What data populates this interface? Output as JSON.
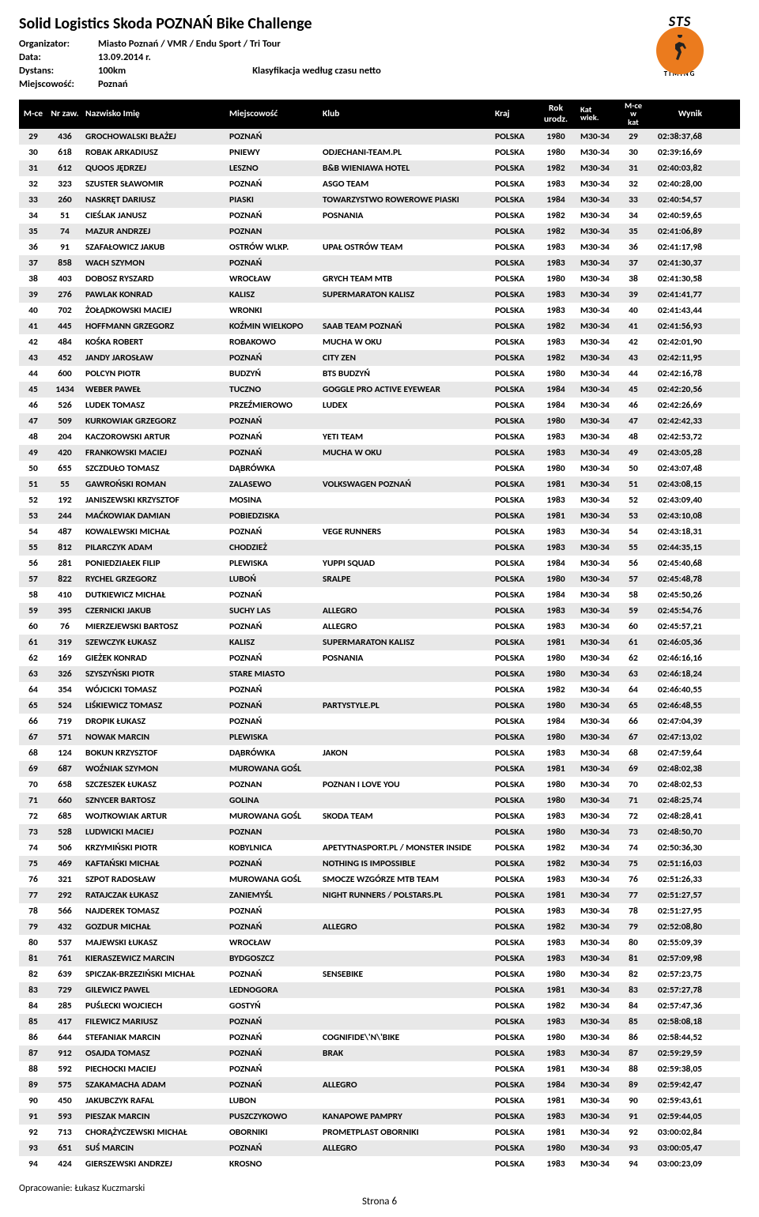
{
  "title": "Solid Logistics Skoda POZNAŃ Bike Challenge",
  "meta": {
    "organizator_label": "Organizator:",
    "organizator": "Miasto Poznań / VMR / Endu Sport / Tri Tour",
    "data_label": "Data:",
    "data": "13.09.2014 r.",
    "dystans_label": "Dystans:",
    "dystans": "100km",
    "miejscowosc_label": "Miejscowość:",
    "miejscowosc": "Poznań",
    "klasyfikacja": "Klasyfikacja według czasu netto"
  },
  "logo_text": "STS",
  "headers": {
    "mce": "M-ce",
    "nr": "Nr zaw.",
    "name": "Nazwisko Imię",
    "city": "Miejscowość",
    "club": "Klub",
    "kraj": "Kraj",
    "rok": "Rok urodz.",
    "kat1": "Kat",
    "kat2": "wiek.",
    "mcek1": "M-ce w",
    "mcek2": "kat",
    "wynik": "Wynik"
  },
  "rows": [
    {
      "mce": "29",
      "nr": "436",
      "name": "GROCHOWALSKI BŁAŻEJ",
      "city": "POZNAŃ",
      "club": "",
      "kraj": "POLSKA",
      "rok": "1980",
      "kat": "M30-34",
      "mcek": "29",
      "wynik": "02:38:37,68"
    },
    {
      "mce": "30",
      "nr": "618",
      "name": "ROBAK ARKADIUSZ",
      "city": "PNIEWY",
      "club": "ODJECHANI-TEAM.PL",
      "kraj": "POLSKA",
      "rok": "1980",
      "kat": "M30-34",
      "mcek": "30",
      "wynik": "02:39:16,69"
    },
    {
      "mce": "31",
      "nr": "612",
      "name": "QUOOS JĘDRZEJ",
      "city": "LESZNO",
      "club": "B&B WIENIAWA HOTEL",
      "kraj": "POLSKA",
      "rok": "1982",
      "kat": "M30-34",
      "mcek": "31",
      "wynik": "02:40:03,82"
    },
    {
      "mce": "32",
      "nr": "323",
      "name": "SZUSTER SŁAWOMIR",
      "city": "POZNAŃ",
      "club": "ASGO TEAM",
      "kraj": "POLSKA",
      "rok": "1983",
      "kat": "M30-34",
      "mcek": "32",
      "wynik": "02:40:28,00"
    },
    {
      "mce": "33",
      "nr": "260",
      "name": "NASKRĘT DARIUSZ",
      "city": "PIASKI",
      "club": "TOWARZYSTWO ROWEROWE PIASKI",
      "kraj": "POLSKA",
      "rok": "1984",
      "kat": "M30-34",
      "mcek": "33",
      "wynik": "02:40:54,57"
    },
    {
      "mce": "34",
      "nr": "51",
      "name": "CIEŚLAK JANUSZ",
      "city": "POZNAŃ",
      "club": "POSNANIA",
      "kraj": "POLSKA",
      "rok": "1982",
      "kat": "M30-34",
      "mcek": "34",
      "wynik": "02:40:59,65"
    },
    {
      "mce": "35",
      "nr": "74",
      "name": "MAZUR ANDRZEJ",
      "city": "POZNAN",
      "club": "",
      "kraj": "POLSKA",
      "rok": "1982",
      "kat": "M30-34",
      "mcek": "35",
      "wynik": "02:41:06,89"
    },
    {
      "mce": "36",
      "nr": "91",
      "name": "SZAFAŁOWICZ JAKUB",
      "city": "OSTRÓW WLKP.",
      "club": "UPAŁ OSTRÓW TEAM",
      "kraj": "POLSKA",
      "rok": "1983",
      "kat": "M30-34",
      "mcek": "36",
      "wynik": "02:41:17,98"
    },
    {
      "mce": "37",
      "nr": "858",
      "name": "WACH SZYMON",
      "city": "POZNAŃ",
      "club": "",
      "kraj": "POLSKA",
      "rok": "1983",
      "kat": "M30-34",
      "mcek": "37",
      "wynik": "02:41:30,37"
    },
    {
      "mce": "38",
      "nr": "403",
      "name": "DOBOSZ RYSZARD",
      "city": "WROCŁAW",
      "club": "GRYCH TEAM MTB",
      "kraj": "POLSKA",
      "rok": "1980",
      "kat": "M30-34",
      "mcek": "38",
      "wynik": "02:41:30,58"
    },
    {
      "mce": "39",
      "nr": "276",
      "name": "PAWLAK KONRAD",
      "city": "KALISZ",
      "club": "SUPERMARATON KALISZ",
      "kraj": "POLSKA",
      "rok": "1983",
      "kat": "M30-34",
      "mcek": "39",
      "wynik": "02:41:41,77"
    },
    {
      "mce": "40",
      "nr": "702",
      "name": "ŻOŁĄDKOWSKI MACIEJ",
      "city": "WRONKI",
      "club": "",
      "kraj": "POLSKA",
      "rok": "1983",
      "kat": "M30-34",
      "mcek": "40",
      "wynik": "02:41:43,44"
    },
    {
      "mce": "41",
      "nr": "445",
      "name": "HOFFMANN GRZEGORZ",
      "city": "KOŹMIN WIELKOPO",
      "club": "SAAB TEAM POZNAŃ",
      "kraj": "POLSKA",
      "rok": "1982",
      "kat": "M30-34",
      "mcek": "41",
      "wynik": "02:41:56,93"
    },
    {
      "mce": "42",
      "nr": "484",
      "name": "KOŚKA ROBERT",
      "city": "ROBAKOWO",
      "club": "MUCHA W OKU",
      "kraj": "POLSKA",
      "rok": "1983",
      "kat": "M30-34",
      "mcek": "42",
      "wynik": "02:42:01,90"
    },
    {
      "mce": "43",
      "nr": "452",
      "name": "JANDY JAROSŁAW",
      "city": "POZNAŃ",
      "club": "CITY ZEN",
      "kraj": "POLSKA",
      "rok": "1982",
      "kat": "M30-34",
      "mcek": "43",
      "wynik": "02:42:11,95"
    },
    {
      "mce": "44",
      "nr": "600",
      "name": "POLCYN PIOTR",
      "city": "BUDZYŃ",
      "club": "BTS BUDZYŃ",
      "kraj": "POLSKA",
      "rok": "1980",
      "kat": "M30-34",
      "mcek": "44",
      "wynik": "02:42:16,78"
    },
    {
      "mce": "45",
      "nr": "1434",
      "name": "WEBER PAWEŁ",
      "city": "TUCZNO",
      "club": "GOGGLE PRO ACTIVE EYEWEAR",
      "kraj": "POLSKA",
      "rok": "1984",
      "kat": "M30-34",
      "mcek": "45",
      "wynik": "02:42:20,56"
    },
    {
      "mce": "46",
      "nr": "526",
      "name": "LUDEK TOMASZ",
      "city": "PRZEŹMIEROWO",
      "club": "LUDEX",
      "kraj": "POLSKA",
      "rok": "1984",
      "kat": "M30-34",
      "mcek": "46",
      "wynik": "02:42:26,69"
    },
    {
      "mce": "47",
      "nr": "509",
      "name": "KURKOWIAK GRZEGORZ",
      "city": "POZNAŃ",
      "club": "",
      "kraj": "POLSKA",
      "rok": "1980",
      "kat": "M30-34",
      "mcek": "47",
      "wynik": "02:42:42,33"
    },
    {
      "mce": "48",
      "nr": "204",
      "name": "KACZOROWSKI ARTUR",
      "city": "POZNAŃ",
      "club": "YETI TEAM",
      "kraj": "POLSKA",
      "rok": "1983",
      "kat": "M30-34",
      "mcek": "48",
      "wynik": "02:42:53,72"
    },
    {
      "mce": "49",
      "nr": "420",
      "name": "FRANKOWSKI MACIEJ",
      "city": "POZNAŃ",
      "club": "MUCHA W OKU",
      "kraj": "POLSKA",
      "rok": "1983",
      "kat": "M30-34",
      "mcek": "49",
      "wynik": "02:43:05,28"
    },
    {
      "mce": "50",
      "nr": "655",
      "name": "SZCZDUŁO TOMASZ",
      "city": "DĄBRÓWKA",
      "club": "",
      "kraj": "POLSKA",
      "rok": "1980",
      "kat": "M30-34",
      "mcek": "50",
      "wynik": "02:43:07,48"
    },
    {
      "mce": "51",
      "nr": "55",
      "name": "GAWROŃSKI ROMAN",
      "city": "ZALASEWO",
      "club": "VOLKSWAGEN POZNAŃ",
      "kraj": "POLSKA",
      "rok": "1981",
      "kat": "M30-34",
      "mcek": "51",
      "wynik": "02:43:08,15"
    },
    {
      "mce": "52",
      "nr": "192",
      "name": "JANISZEWSKI KRZYSZTOF",
      "city": "MOSINA",
      "club": "",
      "kraj": "POLSKA",
      "rok": "1983",
      "kat": "M30-34",
      "mcek": "52",
      "wynik": "02:43:09,40"
    },
    {
      "mce": "53",
      "nr": "244",
      "name": "MAĆKOWIAK DAMIAN",
      "city": "POBIEDZISKA",
      "club": "",
      "kraj": "POLSKA",
      "rok": "1981",
      "kat": "M30-34",
      "mcek": "53",
      "wynik": "02:43:10,08"
    },
    {
      "mce": "54",
      "nr": "487",
      "name": "KOWALEWSKI MICHAŁ",
      "city": "POZNAŃ",
      "club": "VEGE RUNNERS",
      "kraj": "POLSKA",
      "rok": "1983",
      "kat": "M30-34",
      "mcek": "54",
      "wynik": "02:43:18,31"
    },
    {
      "mce": "55",
      "nr": "812",
      "name": "PILARCZYK ADAM",
      "city": "CHODZIEŻ",
      "club": "",
      "kraj": "POLSKA",
      "rok": "1983",
      "kat": "M30-34",
      "mcek": "55",
      "wynik": "02:44:35,15"
    },
    {
      "mce": "56",
      "nr": "281",
      "name": "PONIEDZIAŁEK FILIP",
      "city": "PLEWISKA",
      "club": "YUPPI SQUAD",
      "kraj": "POLSKA",
      "rok": "1984",
      "kat": "M30-34",
      "mcek": "56",
      "wynik": "02:45:40,68"
    },
    {
      "mce": "57",
      "nr": "822",
      "name": "RYCHEL GRZEGORZ",
      "city": "LUBOŃ",
      "club": "SRALPE",
      "kraj": "POLSKA",
      "rok": "1980",
      "kat": "M30-34",
      "mcek": "57",
      "wynik": "02:45:48,78"
    },
    {
      "mce": "58",
      "nr": "410",
      "name": "DUTKIEWICZ MICHAŁ",
      "city": "POZNAŃ",
      "club": "",
      "kraj": "POLSKA",
      "rok": "1984",
      "kat": "M30-34",
      "mcek": "58",
      "wynik": "02:45:50,26"
    },
    {
      "mce": "59",
      "nr": "395",
      "name": "CZERNICKI JAKUB",
      "city": "SUCHY LAS",
      "club": "ALLEGRO",
      "kraj": "POLSKA",
      "rok": "1983",
      "kat": "M30-34",
      "mcek": "59",
      "wynik": "02:45:54,76"
    },
    {
      "mce": "60",
      "nr": "76",
      "name": "MIERZEJEWSKI BARTOSZ",
      "city": "POZNAŃ",
      "club": "ALLEGRO",
      "kraj": "POLSKA",
      "rok": "1983",
      "kat": "M30-34",
      "mcek": "60",
      "wynik": "02:45:57,21"
    },
    {
      "mce": "61",
      "nr": "319",
      "name": "SZEWCZYK ŁUKASZ",
      "city": "KALISZ",
      "club": "SUPERMARATON KALISZ",
      "kraj": "POLSKA",
      "rok": "1981",
      "kat": "M30-34",
      "mcek": "61",
      "wynik": "02:46:05,36"
    },
    {
      "mce": "62",
      "nr": "169",
      "name": "GIEŻEK KONRAD",
      "city": "POZNAŃ",
      "club": "POSNANIA",
      "kraj": "POLSKA",
      "rok": "1980",
      "kat": "M30-34",
      "mcek": "62",
      "wynik": "02:46:16,16"
    },
    {
      "mce": "63",
      "nr": "326",
      "name": "SZYSZYŃSKI PIOTR",
      "city": "STARE MIASTO",
      "club": "",
      "kraj": "POLSKA",
      "rok": "1980",
      "kat": "M30-34",
      "mcek": "63",
      "wynik": "02:46:18,24"
    },
    {
      "mce": "64",
      "nr": "354",
      "name": "WÓJCICKI TOMASZ",
      "city": "POZNAŃ",
      "club": "",
      "kraj": "POLSKA",
      "rok": "1982",
      "kat": "M30-34",
      "mcek": "64",
      "wynik": "02:46:40,55"
    },
    {
      "mce": "65",
      "nr": "524",
      "name": "LIŚKIEWICZ TOMASZ",
      "city": "POZNAŃ",
      "club": "PARTYSTYLE.PL",
      "kraj": "POLSKA",
      "rok": "1980",
      "kat": "M30-34",
      "mcek": "65",
      "wynik": "02:46:48,55"
    },
    {
      "mce": "66",
      "nr": "719",
      "name": "DROPIK ŁUKASZ",
      "city": "POZNAŃ",
      "club": "",
      "kraj": "POLSKA",
      "rok": "1984",
      "kat": "M30-34",
      "mcek": "66",
      "wynik": "02:47:04,39"
    },
    {
      "mce": "67",
      "nr": "571",
      "name": "NOWAK MARCIN",
      "city": "PLEWISKA",
      "club": "",
      "kraj": "POLSKA",
      "rok": "1980",
      "kat": "M30-34",
      "mcek": "67",
      "wynik": "02:47:13,02"
    },
    {
      "mce": "68",
      "nr": "124",
      "name": "BOKUN KRZYSZTOF",
      "city": "DĄBRÓWKA",
      "club": "JAKON",
      "kraj": "POLSKA",
      "rok": "1983",
      "kat": "M30-34",
      "mcek": "68",
      "wynik": "02:47:59,64"
    },
    {
      "mce": "69",
      "nr": "687",
      "name": "WOŹNIAK SZYMON",
      "city": "MUROWANA GOŚL",
      "club": "",
      "kraj": "POLSKA",
      "rok": "1981",
      "kat": "M30-34",
      "mcek": "69",
      "wynik": "02:48:02,38"
    },
    {
      "mce": "70",
      "nr": "658",
      "name": "SZCZESZEK ŁUKASZ",
      "city": "POZNAN",
      "club": "POZNAN I LOVE YOU",
      "kraj": "POLSKA",
      "rok": "1980",
      "kat": "M30-34",
      "mcek": "70",
      "wynik": "02:48:02,53"
    },
    {
      "mce": "71",
      "nr": "660",
      "name": "SZNYCER BARTOSZ",
      "city": "GOLINA",
      "club": "",
      "kraj": "POLSKA",
      "rok": "1980",
      "kat": "M30-34",
      "mcek": "71",
      "wynik": "02:48:25,74"
    },
    {
      "mce": "72",
      "nr": "685",
      "name": "WOJTKOWIAK ARTUR",
      "city": "MUROWANA GOŚL",
      "club": "SKODA TEAM",
      "kraj": "POLSKA",
      "rok": "1983",
      "kat": "M30-34",
      "mcek": "72",
      "wynik": "02:48:28,41"
    },
    {
      "mce": "73",
      "nr": "528",
      "name": "LUDWICKI MACIEJ",
      "city": "POZNAN",
      "club": "",
      "kraj": "POLSKA",
      "rok": "1980",
      "kat": "M30-34",
      "mcek": "73",
      "wynik": "02:48:50,70"
    },
    {
      "mce": "74",
      "nr": "506",
      "name": "KRZYMIŃSKI PIOTR",
      "city": "KOBYLNICA",
      "club": "APETYTNASPORT.PL / MONSTER INSIDE",
      "kraj": "POLSKA",
      "rok": "1982",
      "kat": "M30-34",
      "mcek": "74",
      "wynik": "02:50:36,30"
    },
    {
      "mce": "75",
      "nr": "469",
      "name": "KAFTAŃSKI MICHAŁ",
      "city": "POZNAŃ",
      "club": "NOTHING IS IMPOSSIBLE",
      "kraj": "POLSKA",
      "rok": "1982",
      "kat": "M30-34",
      "mcek": "75",
      "wynik": "02:51:16,03"
    },
    {
      "mce": "76",
      "nr": "321",
      "name": "SZPOT RADOSŁAW",
      "city": "MUROWANA GOŚL",
      "club": "SMOCZE WZGÓRZE MTB TEAM",
      "kraj": "POLSKA",
      "rok": "1983",
      "kat": "M30-34",
      "mcek": "76",
      "wynik": "02:51:26,33"
    },
    {
      "mce": "77",
      "nr": "292",
      "name": "RATAJCZAK ŁUKASZ",
      "city": "ZANIEMYŚL",
      "club": "NIGHT RUNNERS / POLSTARS.PL",
      "kraj": "POLSKA",
      "rok": "1981",
      "kat": "M30-34",
      "mcek": "77",
      "wynik": "02:51:27,57"
    },
    {
      "mce": "78",
      "nr": "566",
      "name": "NAJDEREK TOMASZ",
      "city": "POZNAŃ",
      "club": "",
      "kraj": "POLSKA",
      "rok": "1983",
      "kat": "M30-34",
      "mcek": "78",
      "wynik": "02:51:27,95"
    },
    {
      "mce": "79",
      "nr": "432",
      "name": "GOZDUR MICHAŁ",
      "city": "POZNAŃ",
      "club": "ALLEGRO",
      "kraj": "POLSKA",
      "rok": "1982",
      "kat": "M30-34",
      "mcek": "79",
      "wynik": "02:52:08,80"
    },
    {
      "mce": "80",
      "nr": "537",
      "name": "MAJEWSKI ŁUKASZ",
      "city": "WROCŁAW",
      "club": "",
      "kraj": "POLSKA",
      "rok": "1983",
      "kat": "M30-34",
      "mcek": "80",
      "wynik": "02:55:09,39"
    },
    {
      "mce": "81",
      "nr": "761",
      "name": "KIERASZEWICZ MARCIN",
      "city": "BYDGOSZCZ",
      "club": "",
      "kraj": "POLSKA",
      "rok": "1983",
      "kat": "M30-34",
      "mcek": "81",
      "wynik": "02:57:09,98"
    },
    {
      "mce": "82",
      "nr": "639",
      "name": "SPICZAK-BRZEZIŃSKI MICHAŁ",
      "city": "POZNAŃ",
      "club": "SENSEBIKE",
      "kraj": "POLSKA",
      "rok": "1980",
      "kat": "M30-34",
      "mcek": "82",
      "wynik": "02:57:23,75"
    },
    {
      "mce": "83",
      "nr": "729",
      "name": "GILEWICZ PAWEL",
      "city": "LEDNOGORA",
      "club": "",
      "kraj": "POLSKA",
      "rok": "1981",
      "kat": "M30-34",
      "mcek": "83",
      "wynik": "02:57:27,78"
    },
    {
      "mce": "84",
      "nr": "285",
      "name": "PUŚLECKI WOJCIECH",
      "city": "GOSTYŃ",
      "club": "",
      "kraj": "POLSKA",
      "rok": "1982",
      "kat": "M30-34",
      "mcek": "84",
      "wynik": "02:57:47,36"
    },
    {
      "mce": "85",
      "nr": "417",
      "name": "FILEWICZ MARIUSZ",
      "city": "POZNAŃ",
      "club": "",
      "kraj": "POLSKA",
      "rok": "1983",
      "kat": "M30-34",
      "mcek": "85",
      "wynik": "02:58:08,18"
    },
    {
      "mce": "86",
      "nr": "644",
      "name": "STEFANIAK MARCIN",
      "city": "POZNAŃ",
      "club": "COGNIFIDE\\'N\\'BIKE",
      "kraj": "POLSKA",
      "rok": "1980",
      "kat": "M30-34",
      "mcek": "86",
      "wynik": "02:58:44,52"
    },
    {
      "mce": "87",
      "nr": "912",
      "name": "OSAJDA TOMASZ",
      "city": "POZNAŃ",
      "club": "BRAK",
      "kraj": "POLSKA",
      "rok": "1983",
      "kat": "M30-34",
      "mcek": "87",
      "wynik": "02:59:29,59"
    },
    {
      "mce": "88",
      "nr": "592",
      "name": "PIECHOCKI MACIEJ",
      "city": "POZNAŃ",
      "club": "",
      "kraj": "POLSKA",
      "rok": "1981",
      "kat": "M30-34",
      "mcek": "88",
      "wynik": "02:59:38,05"
    },
    {
      "mce": "89",
      "nr": "575",
      "name": "SZAKAMACHA ADAM",
      "city": "POZNAŃ",
      "club": "ALLEGRO",
      "kraj": "POLSKA",
      "rok": "1984",
      "kat": "M30-34",
      "mcek": "89",
      "wynik": "02:59:42,47"
    },
    {
      "mce": "90",
      "nr": "450",
      "name": "JAKUBCZYK RAFAL",
      "city": "LUBON",
      "club": "",
      "kraj": "POLSKA",
      "rok": "1981",
      "kat": "M30-34",
      "mcek": "90",
      "wynik": "02:59:43,61"
    },
    {
      "mce": "91",
      "nr": "593",
      "name": "PIESZAK MARCIN",
      "city": "PUSZCZYKOWO",
      "club": "KANAPOWE PAMPRY",
      "kraj": "POLSKA",
      "rok": "1983",
      "kat": "M30-34",
      "mcek": "91",
      "wynik": "02:59:44,05"
    },
    {
      "mce": "92",
      "nr": "713",
      "name": "CHORĄŻYCZEWSKI MICHAŁ",
      "city": "OBORNIKI",
      "club": "PROMETPLAST OBORNIKI",
      "kraj": "POLSKA",
      "rok": "1981",
      "kat": "M30-34",
      "mcek": "92",
      "wynik": "03:00:02,84"
    },
    {
      "mce": "93",
      "nr": "651",
      "name": "SUŚ MARCIN",
      "city": "POZNAŃ",
      "club": "ALLEGRO",
      "kraj": "POLSKA",
      "rok": "1980",
      "kat": "M30-34",
      "mcek": "93",
      "wynik": "03:00:05,47"
    },
    {
      "mce": "94",
      "nr": "424",
      "name": "GIERSZEWSKI ANDRZEJ",
      "city": "KROSNO",
      "club": "",
      "kraj": "POLSKA",
      "rok": "1983",
      "kat": "M30-34",
      "mcek": "94",
      "wynik": "03:00:23,09"
    }
  ],
  "footer": "Opracowanie: Łukasz Kuczmarski",
  "page": "Strona 6"
}
